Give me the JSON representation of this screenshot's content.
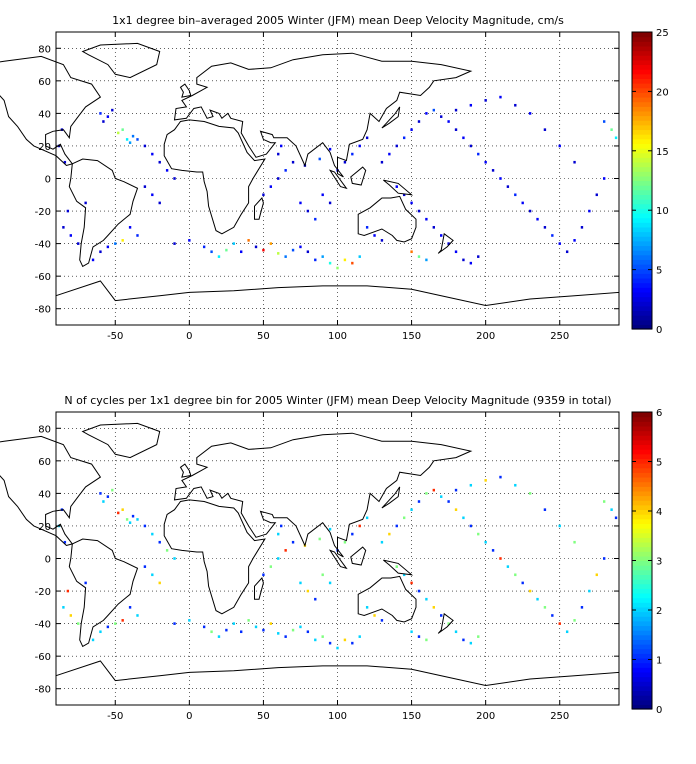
{
  "chart_data": [
    {
      "type": "heatmap",
      "title": "1x1 degree bin–averaged 2005 Winter (JFM) mean Deep Velocity Magnitude, cm/s",
      "x": {
        "ticks": [
          -50,
          0,
          50,
          100,
          150,
          200,
          250
        ],
        "range": [
          -90,
          290
        ]
      },
      "y": {
        "ticks": [
          80,
          60,
          40,
          20,
          0,
          -20,
          -40,
          -60,
          -80
        ],
        "range": [
          -90,
          90
        ]
      },
      "grid": true,
      "colorbar": {
        "ticks": [
          0,
          5,
          10,
          15,
          20,
          25
        ],
        "range": [
          0,
          25
        ],
        "colormap": "jet"
      },
      "cells": [
        [
          -40,
          22,
          7
        ],
        [
          -42,
          24,
          9
        ],
        [
          -45,
          30,
          12
        ],
        [
          -48,
          28,
          14
        ],
        [
          -38,
          26,
          6
        ],
        [
          -35,
          24,
          5
        ],
        [
          -55,
          38,
          3
        ],
        [
          -58,
          35,
          2
        ],
        [
          -60,
          40,
          4
        ],
        [
          -52,
          42,
          2
        ],
        [
          -30,
          20,
          2
        ],
        [
          -25,
          15,
          3
        ],
        [
          -20,
          10,
          2
        ],
        [
          -15,
          5,
          3
        ],
        [
          -10,
          0,
          2
        ],
        [
          -30,
          -5,
          2
        ],
        [
          -25,
          -10,
          3
        ],
        [
          -20,
          -15,
          2
        ],
        [
          -40,
          -30,
          3
        ],
        [
          -35,
          -35,
          4
        ],
        [
          -45,
          -38,
          16
        ],
        [
          -50,
          -40,
          6
        ],
        [
          -55,
          -42,
          3
        ],
        [
          -60,
          -45,
          2
        ],
        [
          -75,
          -40,
          2
        ],
        [
          -80,
          -35,
          3
        ],
        [
          -85,
          -30,
          2
        ],
        [
          -82,
          -20,
          2
        ],
        [
          -70,
          -15,
          2
        ],
        [
          -65,
          -50,
          3
        ],
        [
          -10,
          -40,
          2
        ],
        [
          0,
          -38,
          3
        ],
        [
          10,
          -42,
          4
        ],
        [
          15,
          -45,
          5
        ],
        [
          20,
          -48,
          9
        ],
        [
          25,
          -44,
          12
        ],
        [
          30,
          -40,
          8
        ],
        [
          35,
          -45,
          3
        ],
        [
          40,
          -38,
          19
        ],
        [
          45,
          -42,
          2
        ],
        [
          50,
          -44,
          22
        ],
        [
          55,
          -40,
          18
        ],
        [
          60,
          -46,
          14
        ],
        [
          65,
          -48,
          6
        ],
        [
          70,
          -44,
          5
        ],
        [
          75,
          -42,
          3
        ],
        [
          80,
          -45,
          2
        ],
        [
          85,
          -50,
          4
        ],
        [
          90,
          -48,
          7
        ],
        [
          95,
          -52,
          10
        ],
        [
          100,
          -55,
          13
        ],
        [
          105,
          -50,
          16
        ],
        [
          110,
          -52,
          20
        ],
        [
          115,
          -48,
          8
        ],
        [
          50,
          -10,
          2
        ],
        [
          55,
          -5,
          3
        ],
        [
          60,
          0,
          2
        ],
        [
          65,
          5,
          4
        ],
        [
          70,
          10,
          2
        ],
        [
          75,
          -15,
          3
        ],
        [
          80,
          -20,
          2
        ],
        [
          85,
          -25,
          4
        ],
        [
          90,
          -10,
          3
        ],
        [
          95,
          -15,
          2
        ],
        [
          100,
          5,
          3
        ],
        [
          88,
          12,
          5
        ],
        [
          60,
          15,
          2
        ],
        [
          62,
          20,
          3
        ],
        [
          130,
          10,
          2
        ],
        [
          135,
          15,
          3
        ],
        [
          140,
          20,
          2
        ],
        [
          145,
          25,
          4
        ],
        [
          150,
          30,
          3
        ],
        [
          155,
          35,
          2
        ],
        [
          160,
          40,
          3
        ],
        [
          165,
          42,
          5
        ],
        [
          170,
          38,
          2
        ],
        [
          175,
          35,
          3
        ],
        [
          180,
          30,
          2
        ],
        [
          185,
          25,
          3
        ],
        [
          190,
          20,
          2
        ],
        [
          195,
          15,
          4
        ],
        [
          200,
          10,
          3
        ],
        [
          205,
          5,
          2
        ],
        [
          210,
          0,
          3
        ],
        [
          215,
          -5,
          2
        ],
        [
          220,
          -10,
          4
        ],
        [
          225,
          -15,
          3
        ],
        [
          230,
          -20,
          2
        ],
        [
          235,
          -25,
          3
        ],
        [
          240,
          -30,
          2
        ],
        [
          245,
          -35,
          4
        ],
        [
          250,
          -40,
          3
        ],
        [
          255,
          -45,
          2
        ],
        [
          260,
          -38,
          3
        ],
        [
          265,
          -30,
          2
        ],
        [
          270,
          -20,
          3
        ],
        [
          275,
          -10,
          2
        ],
        [
          280,
          0,
          3
        ],
        [
          260,
          10,
          2
        ],
        [
          250,
          20,
          3
        ],
        [
          240,
          30,
          2
        ],
        [
          230,
          40,
          3
        ],
        [
          220,
          45,
          2
        ],
        [
          210,
          50,
          3
        ],
        [
          200,
          48,
          2
        ],
        [
          190,
          45,
          3
        ],
        [
          180,
          42,
          2
        ],
        [
          140,
          -5,
          3
        ],
        [
          145,
          -10,
          2
        ],
        [
          150,
          -15,
          3
        ],
        [
          155,
          -20,
          2
        ],
        [
          160,
          -25,
          3
        ],
        [
          165,
          -30,
          2
        ],
        [
          170,
          -35,
          3
        ],
        [
          175,
          -40,
          2
        ],
        [
          180,
          -45,
          3
        ],
        [
          185,
          -50,
          2
        ],
        [
          190,
          -52,
          3
        ],
        [
          195,
          -48,
          2
        ],
        [
          150,
          -45,
          19
        ],
        [
          155,
          -48,
          12
        ],
        [
          160,
          -50,
          7
        ],
        [
          120,
          -30,
          4
        ],
        [
          125,
          -35,
          3
        ],
        [
          130,
          -38,
          2
        ],
        [
          285,
          30,
          12
        ],
        [
          288,
          25,
          9
        ],
        [
          280,
          35,
          5
        ],
        [
          -86,
          30,
          2
        ],
        [
          -88,
          20,
          3
        ],
        [
          -84,
          10,
          2
        ],
        [
          115,
          20,
          3
        ],
        [
          120,
          25,
          2
        ],
        [
          110,
          15,
          4
        ],
        [
          105,
          10,
          2
        ],
        [
          95,
          18,
          3
        ],
        [
          78,
          8,
          2
        ]
      ]
    },
    {
      "type": "heatmap",
      "title": "N of cycles per 1x1 degree bin for 2005 Winter (JFM) mean Deep Velocity Magnitude (9359 in total)",
      "x": {
        "ticks": [
          -50,
          0,
          50,
          100,
          150,
          200,
          250
        ],
        "range": [
          -90,
          290
        ]
      },
      "y": {
        "ticks": [
          80,
          60,
          40,
          20,
          0,
          -20,
          -40,
          -60,
          -80
        ],
        "range": [
          -90,
          90
        ]
      },
      "grid": true,
      "colorbar": {
        "ticks": [
          0,
          1,
          2,
          3,
          4,
          5,
          6
        ],
        "range": [
          0,
          6
        ],
        "colormap": "jet"
      },
      "cells": [
        [
          -40,
          22,
          2
        ],
        [
          -42,
          24,
          3
        ],
        [
          -45,
          30,
          4
        ],
        [
          -48,
          28,
          5
        ],
        [
          -38,
          26,
          1
        ],
        [
          -35,
          24,
          2
        ],
        [
          -55,
          38,
          1
        ],
        [
          -58,
          35,
          2
        ],
        [
          -60,
          40,
          1
        ],
        [
          -52,
          42,
          3
        ],
        [
          -30,
          20,
          1
        ],
        [
          -25,
          15,
          2
        ],
        [
          -20,
          10,
          1
        ],
        [
          -15,
          5,
          3
        ],
        [
          -10,
          0,
          2
        ],
        [
          -30,
          -5,
          1
        ],
        [
          -25,
          -10,
          2
        ],
        [
          -20,
          -15,
          4
        ],
        [
          -40,
          -30,
          1
        ],
        [
          -35,
          -35,
          2
        ],
        [
          -45,
          -38,
          5
        ],
        [
          -50,
          -40,
          3
        ],
        [
          -55,
          -42,
          1
        ],
        [
          -60,
          -45,
          2
        ],
        [
          -75,
          -40,
          3
        ],
        [
          -80,
          -35,
          4
        ],
        [
          -85,
          -30,
          2
        ],
        [
          -82,
          -20,
          5
        ],
        [
          -70,
          -15,
          1
        ],
        [
          -65,
          -50,
          2
        ],
        [
          -10,
          -40,
          1
        ],
        [
          0,
          -38,
          2
        ],
        [
          10,
          -42,
          1
        ],
        [
          15,
          -45,
          3
        ],
        [
          20,
          -48,
          2
        ],
        [
          25,
          -44,
          1
        ],
        [
          30,
          -40,
          2
        ],
        [
          35,
          -45,
          1
        ],
        [
          40,
          -38,
          3
        ],
        [
          45,
          -42,
          2
        ],
        [
          50,
          -44,
          1
        ],
        [
          55,
          -40,
          4
        ],
        [
          60,
          -46,
          2
        ],
        [
          65,
          -48,
          1
        ],
        [
          70,
          -44,
          3
        ],
        [
          75,
          -42,
          2
        ],
        [
          80,
          -45,
          1
        ],
        [
          85,
          -50,
          2
        ],
        [
          90,
          -48,
          3
        ],
        [
          95,
          -52,
          1
        ],
        [
          100,
          -55,
          2
        ],
        [
          105,
          -50,
          4
        ],
        [
          110,
          -52,
          1
        ],
        [
          115,
          -48,
          2
        ],
        [
          50,
          -10,
          1
        ],
        [
          55,
          -5,
          3
        ],
        [
          60,
          0,
          2
        ],
        [
          65,
          5,
          5
        ],
        [
          70,
          10,
          1
        ],
        [
          75,
          -15,
          2
        ],
        [
          80,
          -20,
          4
        ],
        [
          85,
          -25,
          1
        ],
        [
          90,
          -10,
          3
        ],
        [
          95,
          -15,
          2
        ],
        [
          100,
          5,
          1
        ],
        [
          88,
          12,
          3
        ],
        [
          60,
          15,
          2
        ],
        [
          62,
          20,
          1
        ],
        [
          130,
          10,
          2
        ],
        [
          135,
          15,
          4
        ],
        [
          140,
          20,
          1
        ],
        [
          145,
          25,
          3
        ],
        [
          150,
          30,
          2
        ],
        [
          155,
          35,
          1
        ],
        [
          160,
          40,
          3
        ],
        [
          165,
          42,
          5
        ],
        [
          170,
          38,
          2
        ],
        [
          175,
          35,
          1
        ],
        [
          180,
          30,
          4
        ],
        [
          185,
          25,
          2
        ],
        [
          190,
          20,
          1
        ],
        [
          195,
          15,
          3
        ],
        [
          200,
          10,
          2
        ],
        [
          205,
          5,
          1
        ],
        [
          210,
          0,
          5
        ],
        [
          215,
          -5,
          2
        ],
        [
          220,
          -10,
          3
        ],
        [
          225,
          -15,
          1
        ],
        [
          230,
          -20,
          4
        ],
        [
          235,
          -25,
          2
        ],
        [
          240,
          -30,
          3
        ],
        [
          245,
          -35,
          1
        ],
        [
          250,
          -40,
          5
        ],
        [
          255,
          -45,
          2
        ],
        [
          260,
          -38,
          3
        ],
        [
          265,
          -30,
          1
        ],
        [
          270,
          -20,
          2
        ],
        [
          275,
          -10,
          4
        ],
        [
          280,
          0,
          1
        ],
        [
          260,
          10,
          3
        ],
        [
          250,
          20,
          2
        ],
        [
          240,
          30,
          1
        ],
        [
          230,
          40,
          3
        ],
        [
          220,
          45,
          2
        ],
        [
          210,
          50,
          1
        ],
        [
          200,
          48,
          4
        ],
        [
          190,
          45,
          2
        ],
        [
          180,
          42,
          1
        ],
        [
          140,
          -5,
          3
        ],
        [
          145,
          -10,
          2
        ],
        [
          150,
          -15,
          5
        ],
        [
          155,
          -20,
          1
        ],
        [
          160,
          -25,
          2
        ],
        [
          165,
          -30,
          4
        ],
        [
          170,
          -35,
          1
        ],
        [
          175,
          -40,
          3
        ],
        [
          180,
          -45,
          2
        ],
        [
          185,
          -50,
          1
        ],
        [
          190,
          -52,
          2
        ],
        [
          195,
          -48,
          3
        ],
        [
          150,
          -45,
          2
        ],
        [
          155,
          -48,
          1
        ],
        [
          160,
          -50,
          3
        ],
        [
          120,
          -30,
          2
        ],
        [
          125,
          -35,
          4
        ],
        [
          130,
          -38,
          1
        ],
        [
          285,
          30,
          2
        ],
        [
          288,
          25,
          1
        ],
        [
          280,
          35,
          3
        ],
        [
          -86,
          30,
          1
        ],
        [
          -88,
          20,
          2
        ],
        [
          -84,
          10,
          1
        ],
        [
          115,
          20,
          5
        ],
        [
          120,
          25,
          2
        ],
        [
          110,
          15,
          1
        ],
        [
          105,
          10,
          3
        ],
        [
          95,
          18,
          2
        ],
        [
          78,
          8,
          4
        ]
      ]
    }
  ]
}
